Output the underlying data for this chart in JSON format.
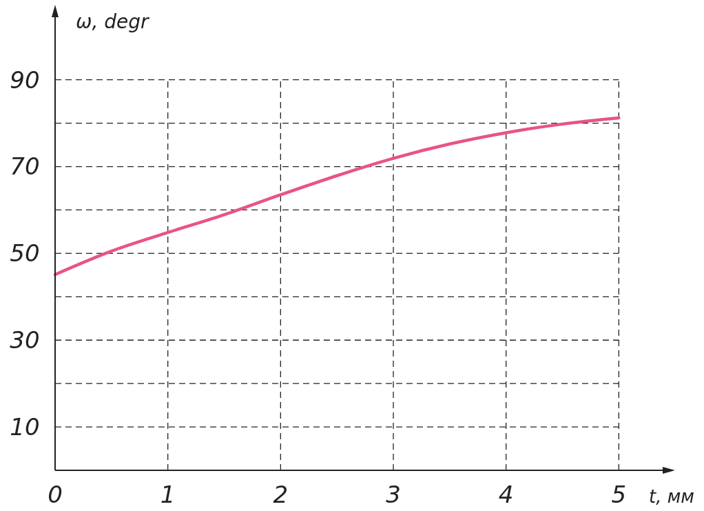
{
  "chart_data": {
    "type": "line",
    "xlabel": "t, мм",
    "ylabel": "ω, degr",
    "x": [
      0,
      0.5,
      1,
      1.5,
      2,
      2.5,
      3,
      3.5,
      4,
      4.5,
      5
    ],
    "series": [
      {
        "color": "#e8538a",
        "values": [
          45.1,
          50.5,
          54.8,
          58.9,
          63.5,
          67.9,
          71.9,
          75.2,
          77.8,
          79.8,
          81.2
        ]
      }
    ],
    "xlim": [
      0,
      5.45
    ],
    "ylim": [
      0,
      106
    ],
    "xticks": [
      0,
      1,
      2,
      3,
      4,
      5
    ],
    "yticks": [
      10,
      {
        "value": 20,
        "label": null
      },
      30,
      {
        "value": 40,
        "label": null
      },
      50,
      {
        "value": 60,
        "label": null
      },
      70,
      {
        "value": 80,
        "label": null
      },
      90
    ],
    "grid": true,
    "marker": "none",
    "line_style": "solid"
  }
}
